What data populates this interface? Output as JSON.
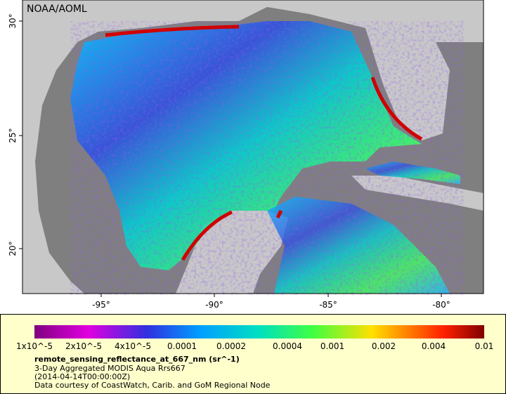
{
  "map": {
    "credit": "NOAA/AOML",
    "lon_labels": [
      "-95°",
      "-90°",
      "-85°",
      "-80°"
    ],
    "lat_labels": [
      "30°",
      "25°",
      "20°"
    ]
  },
  "legend": {
    "colorbar_labels": [
      "1x10^-5",
      "2x10^-5",
      "4x10^-5",
      "0.0001",
      "0.0002",
      "0.0004",
      "0.001",
      "0.002",
      "0.004",
      "0.01"
    ],
    "variable": "remote_sensing_reflectance_at_667_nm (sr^-1)",
    "description": "3-Day Aggregated MODIS Aqua Rrs667",
    "time": "(2014-04-14T00:00:00Z)",
    "source": "Data courtesy of CoastWatch, Carib. and GoM Regional Node"
  }
}
